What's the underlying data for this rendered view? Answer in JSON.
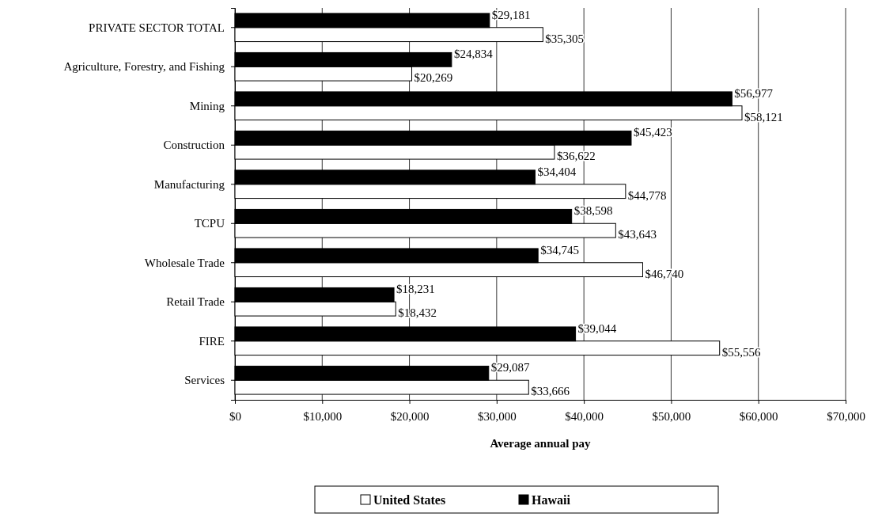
{
  "chart_data": {
    "type": "bar",
    "orientation": "horizontal",
    "xlabel": "Average annual pay",
    "categories": [
      "PRIVATE SECTOR TOTAL",
      "Agriculture, Forestry, and Fishing",
      "Mining",
      "Construction",
      "Manufacturing",
      "TCPU",
      "Wholesale Trade",
      "Retail Trade",
      "FIRE",
      "Services"
    ],
    "series": [
      {
        "name": "United States",
        "color": "#ffffff",
        "values": [
          35305,
          20269,
          58121,
          36622,
          44778,
          43643,
          46740,
          18432,
          55556,
          33666
        ],
        "value_labels": [
          "$35,305",
          "$20,269",
          "$58,121",
          "$36,622",
          "$44,778",
          "$43,643",
          "$46,740",
          "$18,432",
          "$55,556",
          "$33,666"
        ]
      },
      {
        "name": "Hawaii",
        "color": "#000000",
        "values": [
          29181,
          24834,
          56977,
          45423,
          34404,
          38598,
          34745,
          18231,
          39044,
          29087
        ],
        "value_labels": [
          "$29,181",
          "$24,834",
          "$56,977",
          "$45,423",
          "$34,404",
          "$38,598",
          "$34,745",
          "$18,231",
          "$39,044",
          "$29,087"
        ]
      }
    ],
    "xlim": [
      0,
      70000
    ],
    "xticks": [
      {
        "value": 0,
        "label": "$0"
      },
      {
        "value": 10000,
        "label": "$10,000"
      },
      {
        "value": 20000,
        "label": "$20,000"
      },
      {
        "value": 30000,
        "label": "$30,000"
      },
      {
        "value": 40000,
        "label": "$40,000"
      },
      {
        "value": 50000,
        "label": "$50,000"
      },
      {
        "value": 60000,
        "label": "$60,000"
      },
      {
        "value": 70000,
        "label": "$70,000"
      }
    ],
    "grid": "x",
    "legend": "bottom"
  }
}
